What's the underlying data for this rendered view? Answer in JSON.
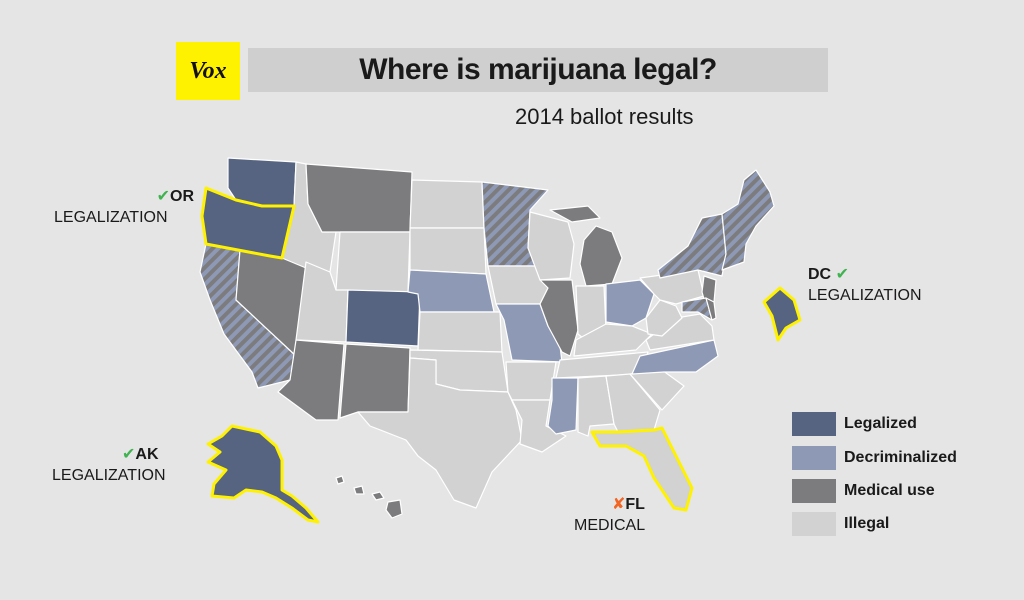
{
  "header": {
    "logo_text": "Vox",
    "title": "Where is marijuana legal?",
    "subtitle": "2014 ballot results"
  },
  "colors": {
    "legalized": "#566381",
    "decriminalized": "#8e99b6",
    "medical": "#7c7c7e",
    "illegal": "#d2d2d3",
    "highlight": "#fff200",
    "check": "#3fb34f",
    "cross": "#f26522"
  },
  "callouts": {
    "or": {
      "code": "OR",
      "label": "LEGALIZATION",
      "result": "check"
    },
    "dc": {
      "code": "DC",
      "label": "LEGALIZATION",
      "result": "check"
    },
    "ak": {
      "code": "AK",
      "label": "LEGALIZATION",
      "result": "check"
    },
    "fl": {
      "code": "FL",
      "label": "MEDICAL",
      "result": "cross"
    }
  },
  "legend": {
    "items": [
      {
        "label": "Legalized",
        "status": "legalized"
      },
      {
        "label": "Decriminalized",
        "status": "decriminalized"
      },
      {
        "label": "Medical use",
        "status": "medical"
      },
      {
        "label": "Illegal",
        "status": "illegal"
      }
    ]
  },
  "map": {
    "states": [
      {
        "name": "Washington",
        "status": "legalized"
      },
      {
        "name": "Oregon",
        "status": "legalized",
        "highlight": true
      },
      {
        "name": "California",
        "status": "decriminalized",
        "hatched": true
      },
      {
        "name": "Nevada",
        "status": "medical"
      },
      {
        "name": "Idaho",
        "status": "illegal"
      },
      {
        "name": "Montana",
        "status": "medical"
      },
      {
        "name": "Wyoming",
        "status": "illegal"
      },
      {
        "name": "Utah",
        "status": "illegal"
      },
      {
        "name": "Colorado",
        "status": "legalized"
      },
      {
        "name": "Arizona",
        "status": "medical"
      },
      {
        "name": "New Mexico",
        "status": "medical"
      },
      {
        "name": "North Dakota",
        "status": "illegal"
      },
      {
        "name": "South Dakota",
        "status": "illegal"
      },
      {
        "name": "Nebraska",
        "status": "decriminalized"
      },
      {
        "name": "Kansas",
        "status": "illegal"
      },
      {
        "name": "Oklahoma",
        "status": "illegal"
      },
      {
        "name": "Texas",
        "status": "illegal"
      },
      {
        "name": "Minnesota",
        "status": "decriminalized",
        "hatched": true
      },
      {
        "name": "Iowa",
        "status": "illegal"
      },
      {
        "name": "Missouri",
        "status": "decriminalized"
      },
      {
        "name": "Arkansas",
        "status": "illegal"
      },
      {
        "name": "Louisiana",
        "status": "illegal"
      },
      {
        "name": "Wisconsin",
        "status": "illegal"
      },
      {
        "name": "Illinois",
        "status": "medical"
      },
      {
        "name": "Michigan",
        "status": "medical"
      },
      {
        "name": "Indiana",
        "status": "illegal"
      },
      {
        "name": "Ohio",
        "status": "decriminalized"
      },
      {
        "name": "Kentucky",
        "status": "illegal"
      },
      {
        "name": "Tennessee",
        "status": "illegal"
      },
      {
        "name": "Mississippi",
        "status": "decriminalized"
      },
      {
        "name": "Alabama",
        "status": "illegal"
      },
      {
        "name": "Georgia",
        "status": "illegal"
      },
      {
        "name": "Florida",
        "status": "illegal",
        "highlight": true
      },
      {
        "name": "South Carolina",
        "status": "illegal"
      },
      {
        "name": "North Carolina",
        "status": "decriminalized"
      },
      {
        "name": "Virginia",
        "status": "illegal"
      },
      {
        "name": "West Virginia",
        "status": "illegal"
      },
      {
        "name": "Pennsylvania",
        "status": "illegal"
      },
      {
        "name": "New York",
        "status": "decriminalized",
        "hatched": true
      },
      {
        "name": "New Jersey",
        "status": "medical"
      },
      {
        "name": "Maryland",
        "status": "decriminalized",
        "hatched": true
      },
      {
        "name": "Delaware",
        "status": "medical"
      },
      {
        "name": "New England",
        "status": "decriminalized",
        "hatched": true
      },
      {
        "name": "Alaska",
        "status": "legalized",
        "highlight": true
      },
      {
        "name": "Hawaii",
        "status": "medical"
      },
      {
        "name": "District of Columbia",
        "status": "legalized",
        "highlight": true
      }
    ]
  }
}
